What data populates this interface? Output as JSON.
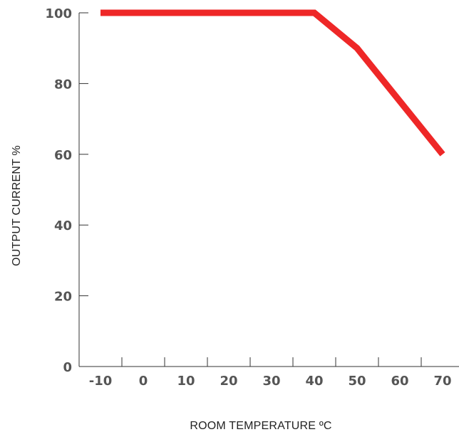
{
  "chart_data": {
    "type": "line",
    "title": "",
    "xlabel": "ROOM TEMPERATURE ºC",
    "ylabel": "OUTPUT CURRENT %",
    "x_ticks": [
      "-10",
      "0",
      "10",
      "20",
      "30",
      "40",
      "50",
      "60",
      "70"
    ],
    "y_ticks": [
      "0",
      "20",
      "40",
      "60",
      "80",
      "100"
    ],
    "xlim": [
      -15,
      75
    ],
    "ylim": [
      0,
      100
    ],
    "grid": false,
    "series": [
      {
        "color": "#ee2727",
        "x": [
          -10,
          40,
          50,
          70
        ],
        "y": [
          100,
          100,
          90,
          60
        ]
      }
    ]
  }
}
